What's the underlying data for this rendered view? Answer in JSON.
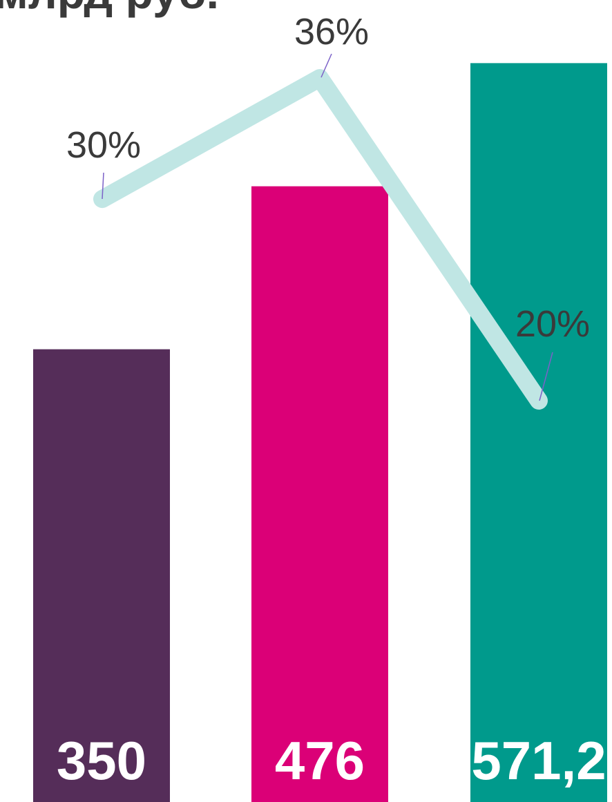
{
  "title": "млрд руб.",
  "chart_data": {
    "type": "bar",
    "title": "млрд руб.",
    "categories": [
      "",
      "",
      ""
    ],
    "series": [
      {
        "type": "bar",
        "values": [
          350,
          476,
          571.2
        ],
        "labels": [
          "350",
          "476",
          "571,2"
        ],
        "colors": [
          "#552D59",
          "#DB0077",
          "#009A8C"
        ]
      },
      {
        "type": "line",
        "values": [
          30,
          36,
          20
        ],
        "labels": [
          "30%",
          "36%",
          "20%"
        ],
        "color": "#C0E6E4"
      }
    ],
    "xlabel": "",
    "ylabel": "",
    "ylim": [
      0,
      620
    ],
    "y2lim": [
      10,
      40
    ],
    "grid": false,
    "legend": "none",
    "label_text_color": "#3a3a3a",
    "bar_label_color": "#ffffff",
    "leader_color": "#7B61C8"
  }
}
